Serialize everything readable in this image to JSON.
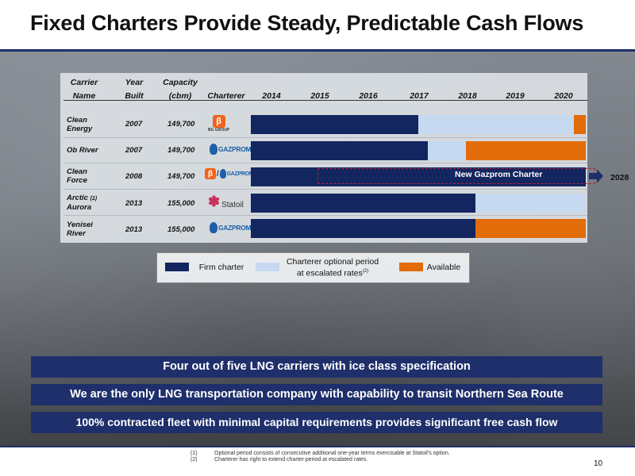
{
  "title": "Fixed Charters Provide Steady, Predictable Cash Flows",
  "table": {
    "headers": {
      "carrier_name_1": "Carrier",
      "carrier_name_2": "Name",
      "year_built_1": "Year",
      "year_built_2": "Built",
      "capacity_1": "Capacity",
      "capacity_2": "(cbm)",
      "charterer": "Charterer",
      "years": [
        "2014",
        "2015",
        "2016",
        "2017",
        "2018",
        "2019",
        "2020"
      ]
    },
    "rows": [
      {
        "name_1": "Clean",
        "name_2": "Energy",
        "year": "2007",
        "capacity": "149,700",
        "charterer": "BG GROUP",
        "segments": [
          {
            "type": "firm",
            "start": 2014,
            "end": 2017.5
          },
          {
            "type": "optional",
            "start": 2017.5,
            "end": 2020.75
          },
          {
            "type": "available",
            "start": 2020.75,
            "end": 2021
          }
        ]
      },
      {
        "name_1": "Ob River",
        "name_2": "",
        "year": "2007",
        "capacity": "149,700",
        "charterer": "GAZPROM",
        "segments": [
          {
            "type": "firm",
            "start": 2014,
            "end": 2017.7
          },
          {
            "type": "optional",
            "start": 2017.7,
            "end": 2018.5
          },
          {
            "type": "available",
            "start": 2018.5,
            "end": 2021
          }
        ]
      },
      {
        "name_1": "Clean",
        "name_2": "Force",
        "year": "2008",
        "capacity": "149,700",
        "charterer": "BG GROUP / GAZPROM",
        "segments": [
          {
            "type": "firm",
            "start": 2014,
            "end": 2021
          }
        ]
      },
      {
        "name_1": "Arctic",
        "name_1_note": "(1)",
        "name_2": "Aurora",
        "year": "2013",
        "capacity": "155,000",
        "charterer": "Statoil",
        "segments": [
          {
            "type": "firm",
            "start": 2014,
            "end": 2018.7
          },
          {
            "type": "optional",
            "start": 2018.7,
            "end": 2021
          }
        ]
      },
      {
        "name_1": "Yenisei",
        "name_2": "River",
        "year": "2013",
        "capacity": "155,000",
        "charterer": "GAZPROM",
        "segments": [
          {
            "type": "firm",
            "start": 2014,
            "end": 2018.7
          },
          {
            "type": "available",
            "start": 2018.7,
            "end": 2021
          }
        ]
      }
    ],
    "new_charter_label": "New Gazprom Charter",
    "extension_year": "2028"
  },
  "legend": {
    "firm": "Firm charter",
    "optional_1": "Charterer optional period",
    "optional_2": "at escalated rates",
    "optional_sup": "(2)",
    "available": "Available"
  },
  "banners": [
    "Four out of five LNG carriers with ice class specification",
    "We are the only LNG transportation company with capability to transit Northern Sea Route",
    "100% contracted fleet with minimal capital requirements provides significant free cash flow"
  ],
  "footnotes": [
    {
      "num": "(1)",
      "text": "Optional period consists of consecutive additional one-year terms exercisable at Statoil's option."
    },
    {
      "num": "(2)",
      "text": "Charterer has right to extend charter period at escalated rates."
    }
  ],
  "page_number": "10",
  "colors": {
    "firm": "#142660",
    "optional": "#c6d9f0",
    "available": "#e36c0a",
    "accent": "#1f2f6b"
  }
}
